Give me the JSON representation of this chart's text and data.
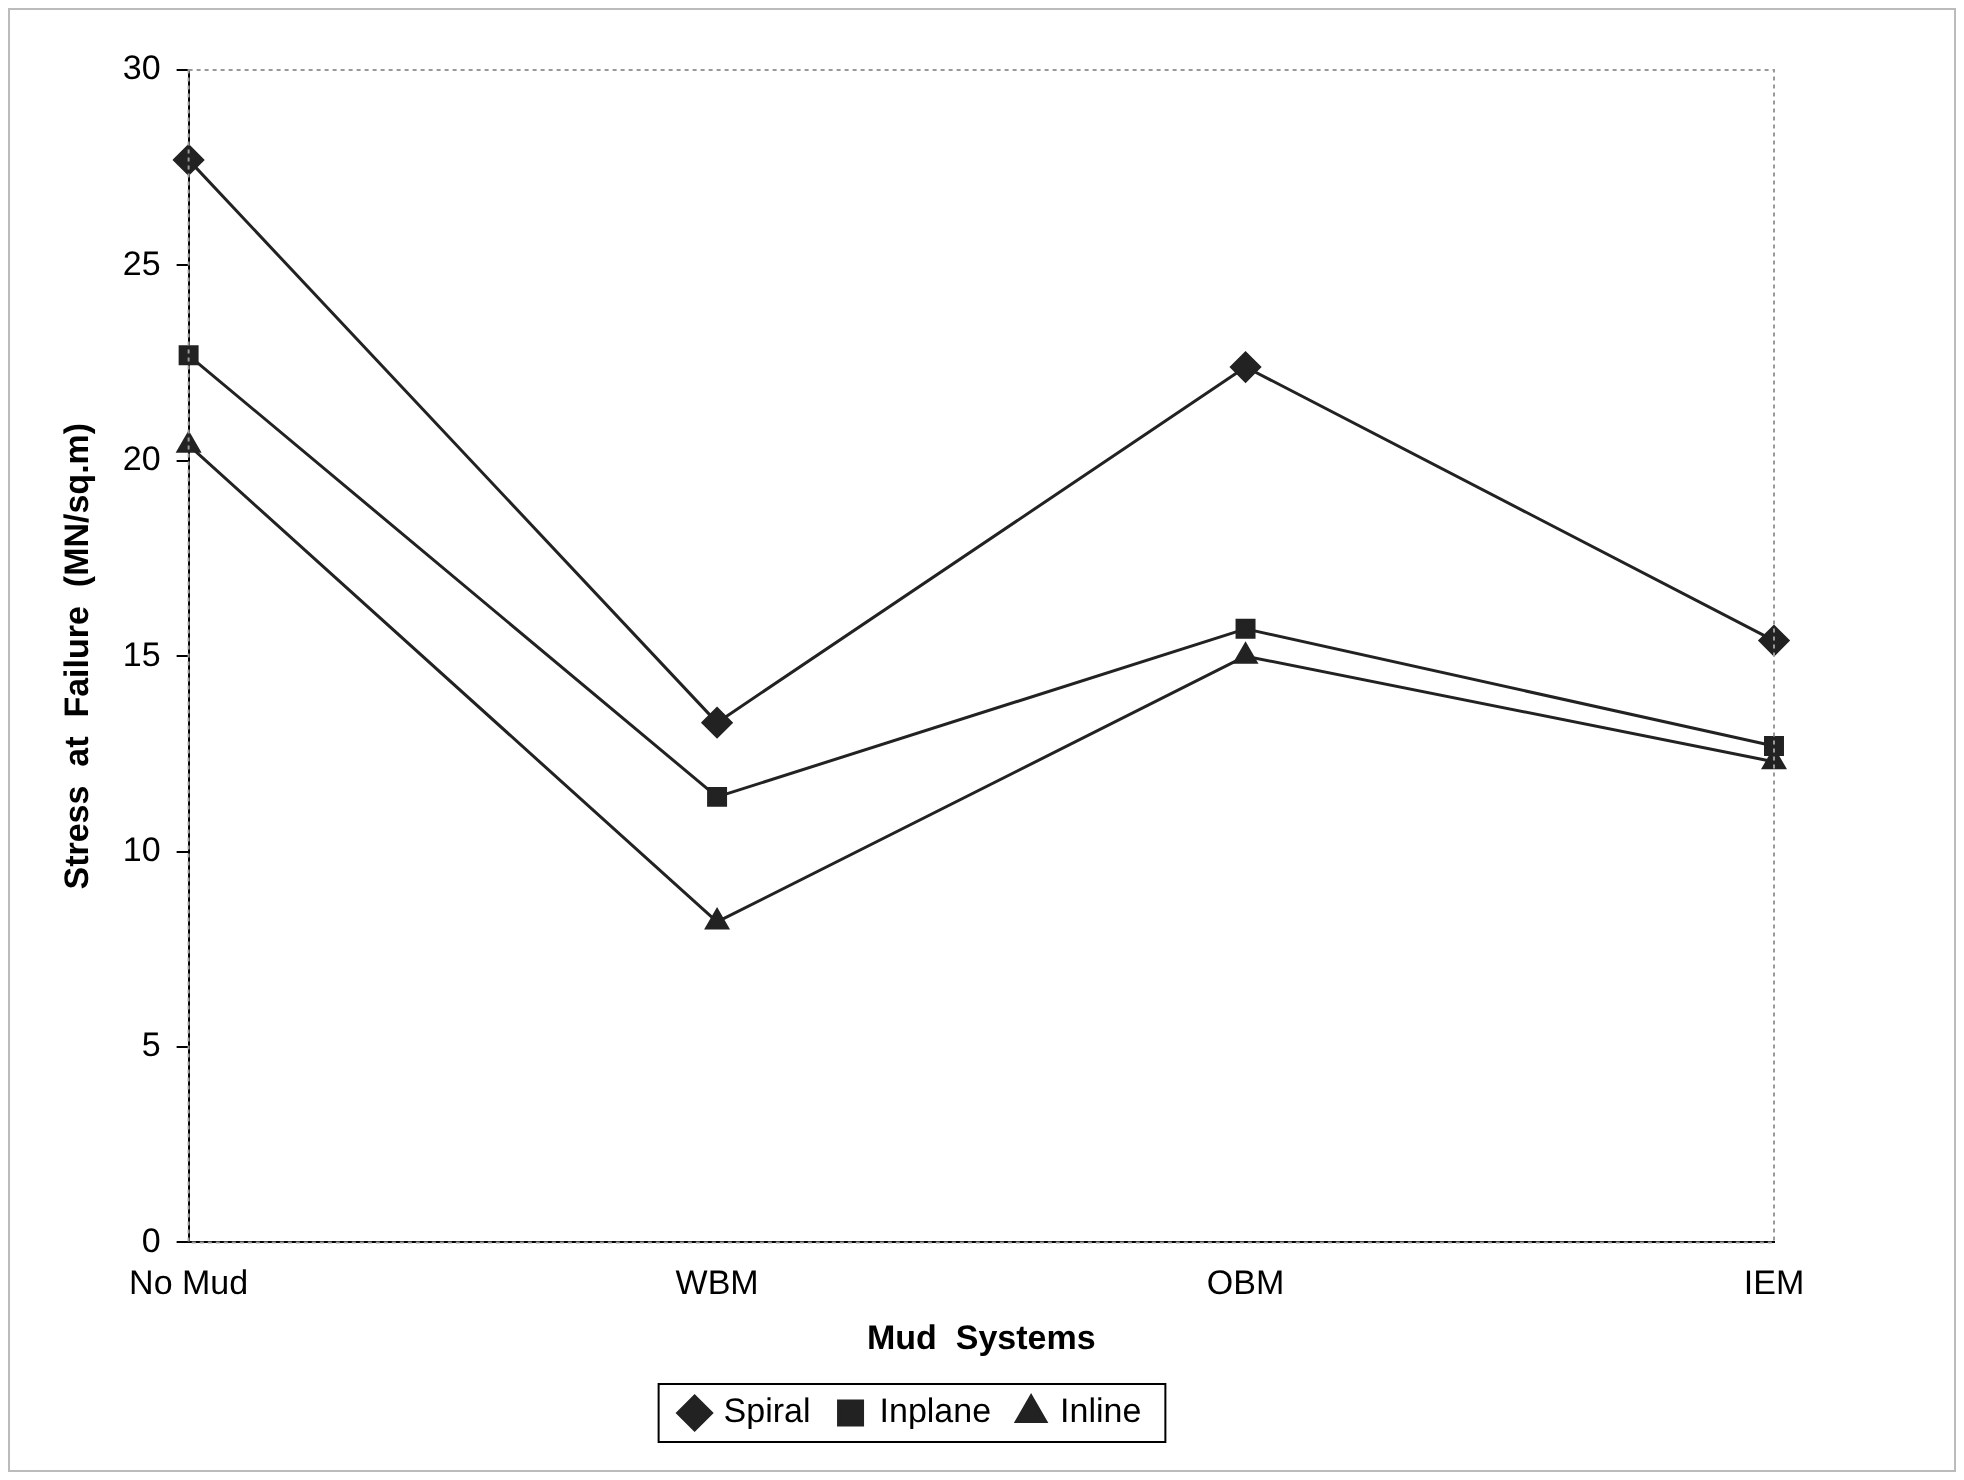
{
  "chart_data": {
    "type": "line",
    "xlabel": "Mud  Systems",
    "ylabel": "Stress  at  Failure  (MN/sq.m)",
    "categories": [
      "No Mud",
      "WBM",
      "OBM",
      "IEM"
    ],
    "series": [
      {
        "name": "Spiral",
        "color": "#222222",
        "marker": "diamond",
        "values": [
          27.7,
          13.3,
          22.4,
          15.4
        ]
      },
      {
        "name": "Inplane",
        "color": "#222222",
        "marker": "square",
        "values": [
          22.7,
          11.4,
          15.7,
          12.7
        ]
      },
      {
        "name": "Inline",
        "color": "#222222",
        "marker": "triangle",
        "values": [
          20.4,
          8.2,
          15.0,
          12.3
        ]
      }
    ],
    "ylim": [
      0,
      30
    ],
    "yticks": [
      0,
      5,
      10,
      15,
      20,
      25,
      30
    ],
    "grid": false,
    "legend": "bottom",
    "line_style": "solid"
  }
}
